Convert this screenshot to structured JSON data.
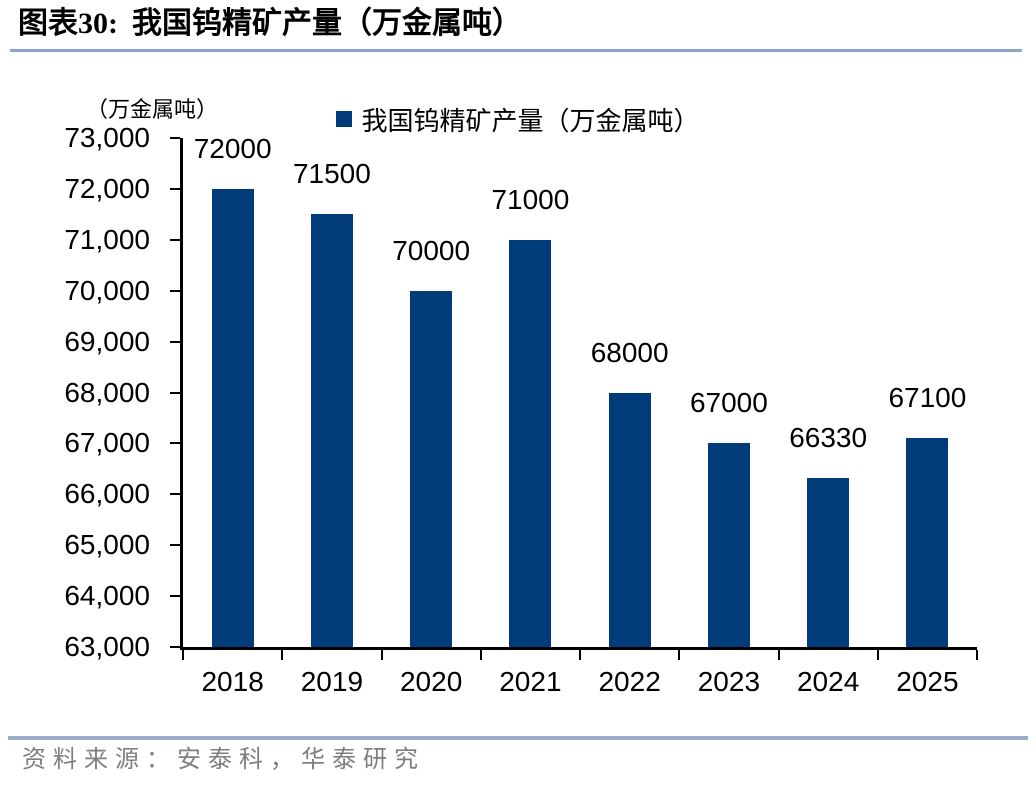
{
  "header": {
    "figure_label": "图表30:",
    "figure_title": "我国钨精矿产量（万金属吨）"
  },
  "chart_data": {
    "type": "bar",
    "title": "我国钨精矿产量（万金属吨）",
    "unit_label": "（万金属吨）",
    "legend": {
      "label": "我国钨精矿产量（万金属吨）",
      "position": "top-center"
    },
    "categories": [
      "2018",
      "2019",
      "2020",
      "2021",
      "2022",
      "2023",
      "2024",
      "2025"
    ],
    "values": [
      72000,
      71500,
      70000,
      71000,
      68000,
      67000,
      66330,
      67100
    ],
    "data_labels": [
      "72000",
      "71500",
      "70000",
      "71000",
      "68000",
      "67000",
      "66330",
      "67100"
    ],
    "xlabel": "",
    "ylabel": "（万金属吨）",
    "ylim": [
      63000,
      73000
    ],
    "ytick_step": 1000,
    "ytick_format": "comma-thousands",
    "grid": false,
    "bar_color": "#003B7A"
  },
  "footer": {
    "source": "资料来源：安泰科，华泰研究"
  },
  "colors": {
    "bar": "#003B7A",
    "title_rule": "#8FA5C7",
    "footer_rule": "#9AACC6",
    "source_text": "#7F7F7F",
    "axis": "#000000"
  }
}
